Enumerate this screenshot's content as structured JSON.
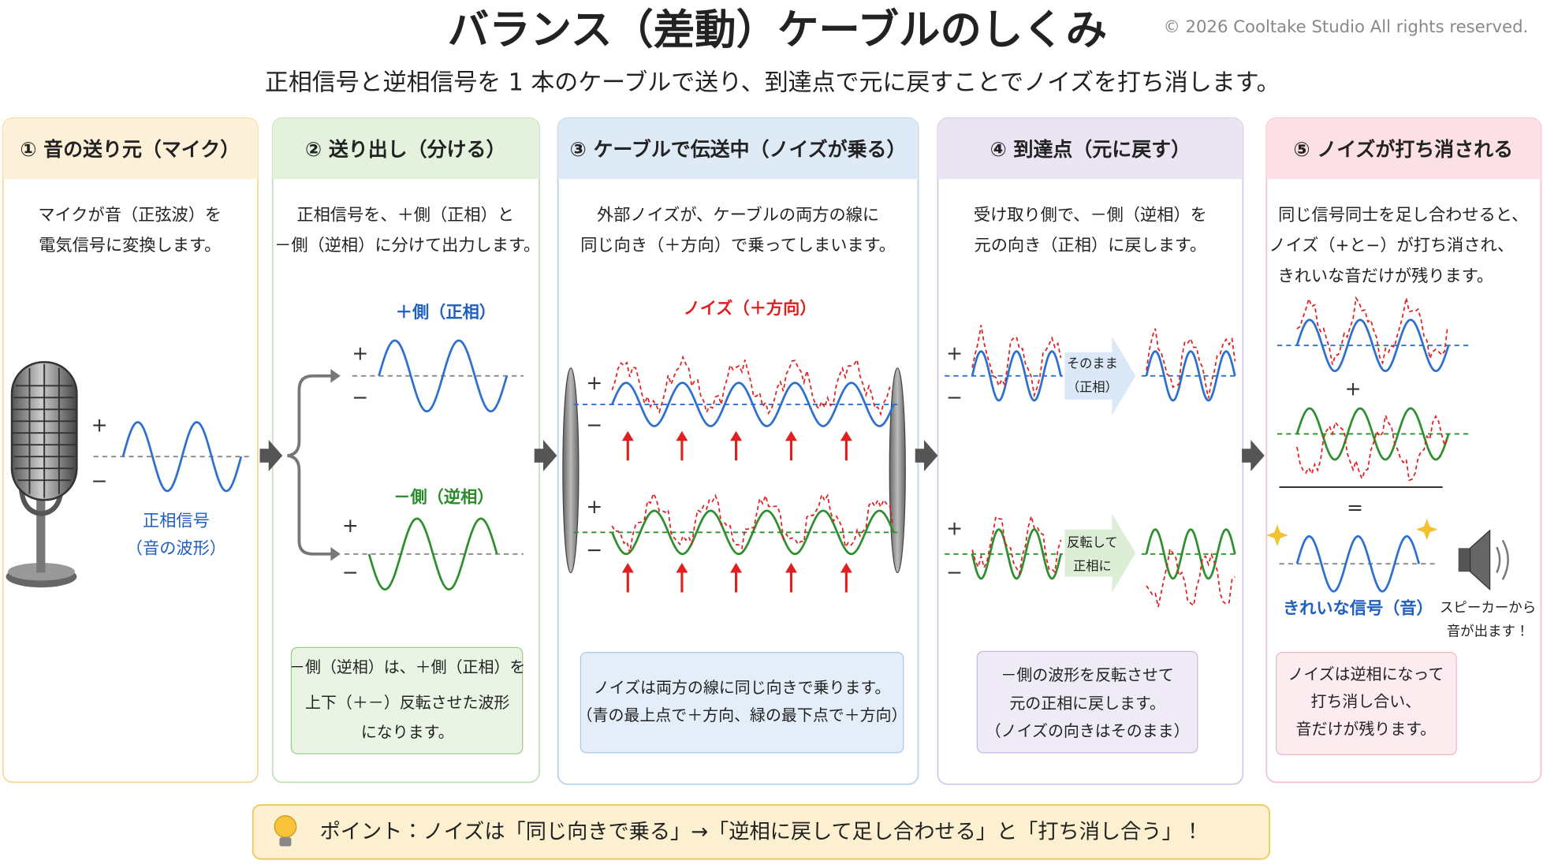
{
  "header": {
    "title": "バランス（差動）ケーブルのしくみ",
    "subtitle": "正相信号と逆相信号を 1 本のケーブルで送り、到達点で元に戻すことでノイズを打ち消します。",
    "copyright": "© 2026 Cooltake Studio All rights reserved."
  },
  "symbols": {
    "plus": "+",
    "minus": "−",
    "equals": "="
  },
  "panels": [
    {
      "heading": "① 音の送り元（マイク）",
      "description": [
        "マイクが音（正弦波）を",
        "電気信号に変換します。"
      ],
      "caption": [
        "正相信号",
        "（音の波形）"
      ]
    },
    {
      "heading": "② 送り出し（分ける）",
      "description": [
        "正相信号を、＋側（正相）と",
        "－側（逆相）に分けて出力します。"
      ],
      "positive_label": "＋側（正相）",
      "negative_label": "－側（逆相）",
      "note": [
        "－側（逆相）は、＋側（正相）を",
        "上下（＋－）反転させた波形",
        "になります。"
      ]
    },
    {
      "heading": "③ ケーブルで伝送中（ノイズが乗る）",
      "description": [
        "外部ノイズが、ケーブルの両方の線に",
        "同じ向き（＋方向）で乗ってしまいます。"
      ],
      "noise_label": "ノイズ（＋方向）",
      "note": [
        "ノイズは両方の線に同じ向きで乗ります。",
        "（青の最上点で＋方向、緑の最下点で＋方向）"
      ]
    },
    {
      "heading": "④ 到達点（元に戻す）",
      "description": [
        "受け取り側で、－側（逆相）を",
        "元の向き（正相）に戻します。"
      ],
      "keep_label": [
        "そのまま",
        "（正相）"
      ],
      "invert_label": [
        "反転して",
        "正相に"
      ],
      "note": [
        "－側の波形を反転させて",
        "元の正相に戻します。",
        "（ノイズの向きはそのまま）"
      ]
    },
    {
      "heading": "⑤ ノイズが打ち消される",
      "description": [
        "同じ信号同士を足し合わせると、",
        "ノイズ（+と−）が打ち消され、",
        "きれいな音だけが残ります。"
      ],
      "result_label": "きれいな信号（音）",
      "speaker_label": [
        "スピーカーから",
        "音が出ます！"
      ],
      "note": [
        "ノイズは逆相になって",
        "打ち消し合い、",
        "音だけが残ります。"
      ]
    }
  ],
  "footer": {
    "tip": "ポイント：ノイズは「同じ向きで乗る」→「逆相に戻して足し合わせる」と「打ち消し合う」！"
  }
}
